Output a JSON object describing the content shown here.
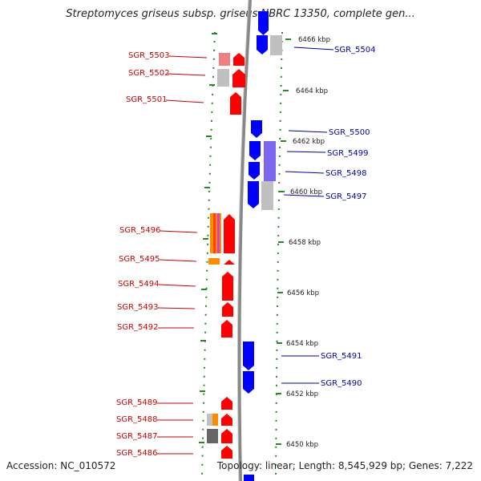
{
  "title": "Streptomyces griseus subsp. griseus NBRC 13350, complete gen...",
  "footer": {
    "accession": "Accession: NC_010572",
    "topology": "Topology: linear; Length: 8,545,929 bp; Genes: 7,222"
  },
  "colors": {
    "forward_gene": "#ff0000",
    "reverse_gene": "#0000ff",
    "forward_label": "#cc0000",
    "reverse_label": "#0000aa",
    "scale_tick": "#228b22",
    "backbone": "#888888"
  },
  "kbp_labels": [
    "6466 kbp",
    "6464 kbp",
    "6462 kbp",
    "6460 kbp",
    "6458 kbp",
    "6456 kbp",
    "6454 kbp",
    "6452 kbp",
    "6450 kbp"
  ],
  "left_genes": [
    "SGR_5503",
    "SGR_5502",
    "SGR_5501",
    "SGR_5496",
    "SGR_5495",
    "SGR_5494",
    "SGR_5493",
    "SGR_5492",
    "SGR_5489",
    "SGR_5488",
    "SGR_5487",
    "SGR_5486"
  ],
  "right_genes": [
    "SGR_5504",
    "SGR_5500",
    "SGR_5499",
    "SGR_5498",
    "SGR_5497",
    "SGR_5491",
    "SGR_5490"
  ]
}
